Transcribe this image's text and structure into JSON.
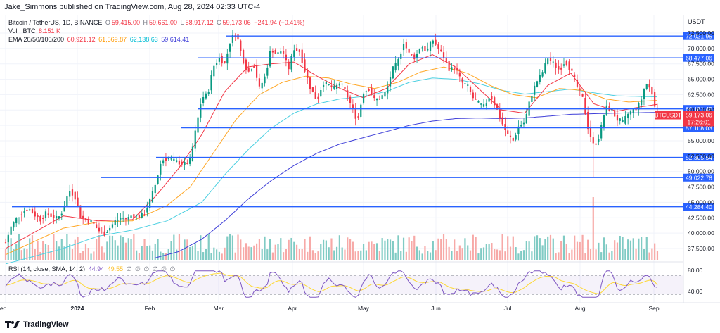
{
  "header": {
    "publisher_text": "Jake_Simmons published on TradingView.com, Aug 28, 2024 02:33 UTC-4"
  },
  "legend": {
    "symbol": "Bitcoin / TetherUS, 1D, BINANCE",
    "open_label": "O",
    "open": "59,415.00",
    "high_label": "H",
    "high": "59,661.00",
    "low_label": "L",
    "low": "58,917.12",
    "close_label": "C",
    "close": "59,173.06",
    "change": "−241.94 (−0.41%)",
    "vol_label": "Vol · BTC",
    "vol_value": "8.151 K",
    "ema_label": "EMA 20/50/100/200",
    "ema_values": [
      "60,921.12",
      "61,569.87",
      "62,138.63",
      "59,614.41"
    ],
    "ema_colors": [
      "#f23645",
      "#ff9800",
      "#00e5ff",
      "#3f3fd8"
    ],
    "rsi_label": "RSI (14, close, SMA, 14, 2)",
    "rsi_value": "44.94",
    "rsi_sma": "49.55",
    "rsi_empty": [
      "∅",
      "∅",
      "∅",
      "∅",
      "∅",
      "∅"
    ]
  },
  "price_axis": {
    "currency": "USDT",
    "ticks": [
      "72,500.00",
      "70,000.00",
      "67,500.00",
      "65,000.00",
      "62,500.00",
      "60,000.00",
      "57,500.00",
      "55,000.00",
      "52,500.00",
      "50,000.00",
      "47,500.00",
      "45,000.00",
      "42,500.00",
      "40,000.00",
      "37,500.00"
    ],
    "ticker_tag": "BTCUSDT",
    "current_price": "59,173.06",
    "countdown": "17:26:01"
  },
  "rsi_axis": {
    "ticks": [
      "80.00",
      "40.00"
    ]
  },
  "time_axis": {
    "ticks": [
      "ec",
      "2024",
      "Feb",
      "Mar",
      "Apr",
      "May",
      "Jun",
      "Jul",
      "Aug",
      "Sep"
    ]
  },
  "levels": [
    {
      "label": "72,021.95"
    },
    {
      "label": "68,477.06"
    },
    {
      "label": "60,181.49"
    },
    {
      "label": "57,108.03"
    },
    {
      "label": "52,305.54"
    },
    {
      "label": "49,022.78"
    },
    {
      "label": "44,284.40"
    }
  ],
  "footer": {
    "brand": "TradingView",
    "logo_icon": "tradingview-logo-icon"
  },
  "colors": {
    "up": "#089981",
    "down": "#f23645",
    "level_line": "#2962ff",
    "vol_up": "#80cbc4",
    "vol_down": "#f7a9a7",
    "rsi_line": "#7e57c2",
    "rsi_sma": "#fdd835"
  },
  "chart_data": {
    "type": "candlestick",
    "price_ylim": [
      36000,
      75000
    ],
    "dates": [
      "Dec",
      "2024",
      "Feb",
      "Mar",
      "Apr",
      "May",
      "Jun",
      "Jul",
      "Aug",
      "Sep"
    ],
    "close_path": [
      [
        0,
        38500
      ],
      [
        0.5,
        41200
      ],
      [
        1.0,
        42500
      ],
      [
        1.5,
        43500
      ],
      [
        2.0,
        44000
      ],
      [
        2.5,
        43000
      ],
      [
        3.0,
        42200
      ],
      [
        3.5,
        43200
      ],
      [
        4.0,
        42800
      ],
      [
        4.5,
        42300
      ],
      [
        5.0,
        43800
      ],
      [
        5.5,
        47000
      ],
      [
        6.0,
        46000
      ],
      [
        6.5,
        42700
      ],
      [
        7.0,
        42000
      ],
      [
        7.5,
        41800
      ],
      [
        8.0,
        40500
      ],
      [
        8.5,
        39800
      ],
      [
        9.0,
        40800
      ],
      [
        9.5,
        42000
      ],
      [
        10.0,
        42500
      ],
      [
        10.5,
        42300
      ],
      [
        11.0,
        43000
      ],
      [
        11.5,
        42600
      ],
      [
        12.0,
        43100
      ],
      [
        12.5,
        45200
      ],
      [
        13.0,
        48000
      ],
      [
        13.5,
        51800
      ],
      [
        14.0,
        52200
      ],
      [
        14.5,
        51800
      ],
      [
        15.0,
        51500
      ],
      [
        15.5,
        51200
      ],
      [
        16.0,
        51800
      ],
      [
        16.5,
        57000
      ],
      [
        17.0,
        62000
      ],
      [
        17.5,
        62500
      ],
      [
        18.0,
        67000
      ],
      [
        18.5,
        68500
      ],
      [
        19.0,
        67500
      ],
      [
        19.5,
        71500
      ],
      [
        20.0,
        72500
      ],
      [
        20.5,
        68500
      ],
      [
        21.0,
        66000
      ],
      [
        21.5,
        67500
      ],
      [
        22.0,
        63500
      ],
      [
        22.5,
        65500
      ],
      [
        23.0,
        70000
      ],
      [
        23.5,
        69000
      ],
      [
        24.0,
        69800
      ],
      [
        24.5,
        66500
      ],
      [
        25.0,
        70000
      ],
      [
        25.5,
        69500
      ],
      [
        26.0,
        66000
      ],
      [
        26.5,
        63200
      ],
      [
        27.0,
        61500
      ],
      [
        27.5,
        64500
      ],
      [
        28.0,
        64000
      ],
      [
        28.5,
        63500
      ],
      [
        29.0,
        64500
      ],
      [
        29.5,
        62800
      ],
      [
        30.0,
        60500
      ],
      [
        30.5,
        58200
      ],
      [
        31.0,
        62900
      ],
      [
        31.5,
        63500
      ],
      [
        32.0,
        61500
      ],
      [
        32.5,
        62000
      ],
      [
        33.0,
        63000
      ],
      [
        33.5,
        66500
      ],
      [
        34.0,
        67800
      ],
      [
        34.5,
        71000
      ],
      [
        35.0,
        69000
      ],
      [
        35.5,
        68500
      ],
      [
        36.0,
        70500
      ],
      [
        36.5,
        69500
      ],
      [
        37.0,
        71500
      ],
      [
        37.5,
        70000
      ],
      [
        38.0,
        68500
      ],
      [
        38.5,
        66500
      ],
      [
        39.0,
        67000
      ],
      [
        39.5,
        64500
      ],
      [
        40.0,
        64000
      ],
      [
        40.5,
        62000
      ],
      [
        41.0,
        61000
      ],
      [
        41.5,
        60500
      ],
      [
        42.0,
        62500
      ],
      [
        42.5,
        60500
      ],
      [
        43.0,
        58000
      ],
      [
        43.5,
        56000
      ],
      [
        44.0,
        55000
      ],
      [
        44.5,
        57500
      ],
      [
        45.0,
        58000
      ],
      [
        45.5,
        62000
      ],
      [
        46.0,
        64500
      ],
      [
        46.5,
        66000
      ],
      [
        47.0,
        68500
      ],
      [
        47.5,
        67500
      ],
      [
        48.0,
        66500
      ],
      [
        48.5,
        68000
      ],
      [
        49.0,
        66500
      ],
      [
        49.5,
        64000
      ],
      [
        50.0,
        62000
      ],
      [
        50.5,
        57000
      ],
      [
        51.0,
        54000
      ],
      [
        51.5,
        56000
      ],
      [
        52.0,
        60500
      ],
      [
        52.5,
        60000
      ],
      [
        53.0,
        58500
      ],
      [
        53.5,
        58000
      ],
      [
        54.0,
        59500
      ],
      [
        54.5,
        60000
      ],
      [
        55.0,
        61000
      ],
      [
        55.5,
        64500
      ],
      [
        56.0,
        63000
      ],
      [
        56.5,
        59173
      ]
    ],
    "ema20": [
      [
        0,
        37500
      ],
      [
        5,
        42800
      ],
      [
        8,
        42000
      ],
      [
        11,
        42200
      ],
      [
        13,
        46000
      ],
      [
        15,
        50500
      ],
      [
        17,
        56000
      ],
      [
        19,
        63000
      ],
      [
        21,
        67000
      ],
      [
        23,
        67500
      ],
      [
        25,
        67800
      ],
      [
        27,
        65500
      ],
      [
        29,
        63500
      ],
      [
        31,
        62000
      ],
      [
        33,
        63500
      ],
      [
        35,
        67500
      ],
      [
        37,
        69000
      ],
      [
        39,
        67000
      ],
      [
        41,
        63500
      ],
      [
        43,
        60000
      ],
      [
        45,
        59500
      ],
      [
        47,
        64000
      ],
      [
        49,
        66000
      ],
      [
        51,
        61000
      ],
      [
        53,
        59800
      ],
      [
        55,
        60500
      ],
      [
        56.5,
        60921
      ]
    ],
    "ema50": [
      [
        0,
        36500
      ],
      [
        5,
        40800
      ],
      [
        8,
        41800
      ],
      [
        11,
        42000
      ],
      [
        14,
        44500
      ],
      [
        16,
        47500
      ],
      [
        18,
        53000
      ],
      [
        20,
        58500
      ],
      [
        22,
        62500
      ],
      [
        24,
        64500
      ],
      [
        26,
        65500
      ],
      [
        28,
        65200
      ],
      [
        30,
        64200
      ],
      [
        32,
        63500
      ],
      [
        34,
        64500
      ],
      [
        36,
        66200
      ],
      [
        38,
        67000
      ],
      [
        40,
        66000
      ],
      [
        42,
        64000
      ],
      [
        44,
        62500
      ],
      [
        46,
        62000
      ],
      [
        48,
        63500
      ],
      [
        50,
        63200
      ],
      [
        52,
        61800
      ],
      [
        54,
        61300
      ],
      [
        56.5,
        61570
      ]
    ],
    "ema100": [
      [
        0,
        35000
      ],
      [
        5,
        37500
      ],
      [
        8,
        39500
      ],
      [
        11,
        40500
      ],
      [
        14,
        42000
      ],
      [
        17,
        45000
      ],
      [
        19,
        49500
      ],
      [
        21,
        53500
      ],
      [
        23,
        57000
      ],
      [
        25,
        59500
      ],
      [
        27,
        61000
      ],
      [
        29,
        61800
      ],
      [
        31,
        62200
      ],
      [
        33,
        63000
      ],
      [
        35,
        64500
      ],
      [
        37,
        65200
      ],
      [
        39,
        65000
      ],
      [
        41,
        64300
      ],
      [
        43,
        63200
      ],
      [
        45,
        62600
      ],
      [
        47,
        63000
      ],
      [
        49,
        63400
      ],
      [
        51,
        62800
      ],
      [
        53,
        62300
      ],
      [
        56.5,
        62139
      ]
    ],
    "ema200": [
      [
        13,
        36000
      ],
      [
        15,
        37000
      ],
      [
        17,
        39000
      ],
      [
        19,
        42000
      ],
      [
        21,
        45500
      ],
      [
        23,
        48500
      ],
      [
        25,
        51000
      ],
      [
        27,
        53000
      ],
      [
        29,
        54500
      ],
      [
        31,
        55500
      ],
      [
        33,
        56500
      ],
      [
        35,
        57500
      ],
      [
        37,
        58200
      ],
      [
        39,
        58600
      ],
      [
        41,
        58700
      ],
      [
        43,
        58600
      ],
      [
        45,
        58700
      ],
      [
        47,
        59000
      ],
      [
        49,
        59300
      ],
      [
        51,
        59400
      ],
      [
        53,
        59500
      ],
      [
        56.5,
        59614
      ]
    ],
    "horizontal_levels": [
      72021.95,
      68477.06,
      60181.49,
      57108.03,
      52305.54,
      49022.78,
      44284.4
    ],
    "rsi": {
      "ylim": [
        20,
        90
      ],
      "bands": [
        70,
        30
      ],
      "value": 44.94,
      "sma": 49.55
    }
  }
}
